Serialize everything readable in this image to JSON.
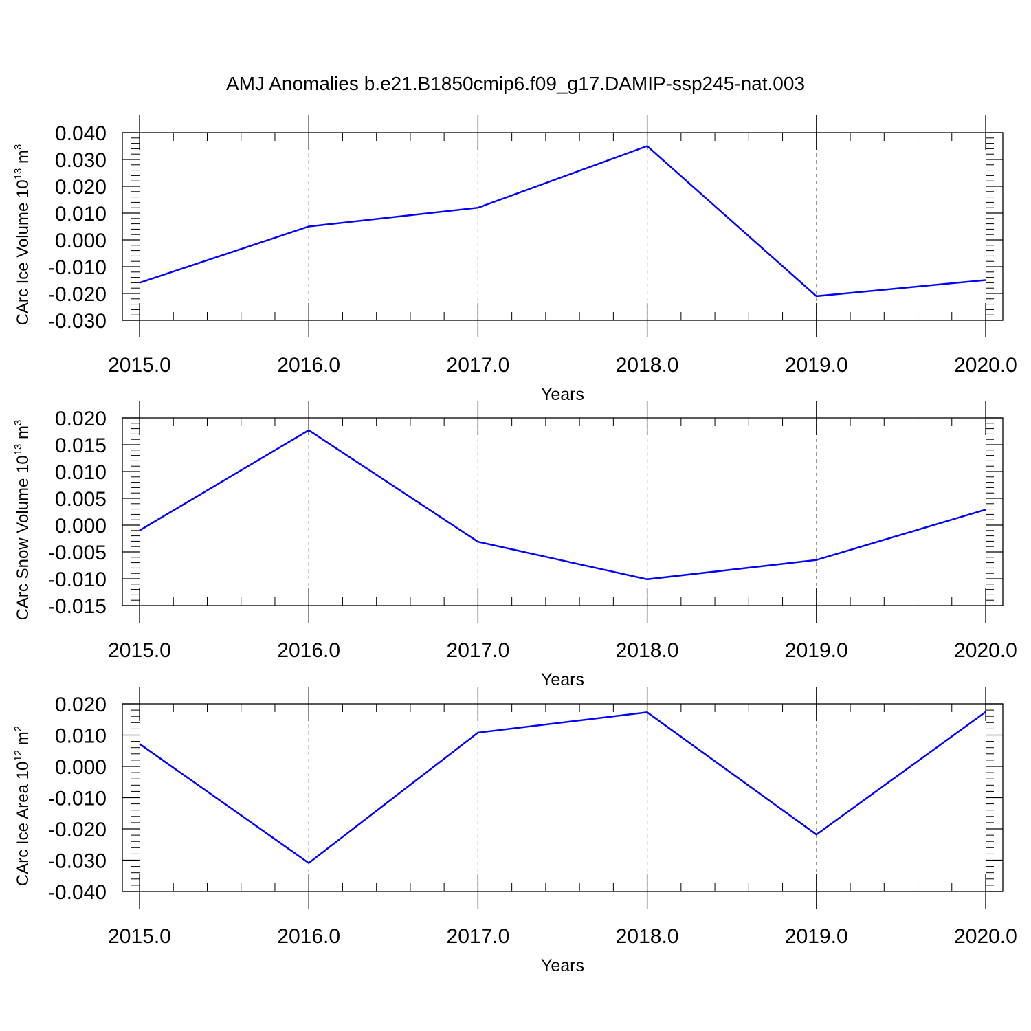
{
  "title": "AMJ Anomalies b.e21.B1850cmip6.f09_g17.DAMIP-ssp245-nat.003",
  "colors": {
    "line": "#0000ff",
    "axis": "#000000",
    "grid": "#808080"
  },
  "chart_data": [
    {
      "type": "line",
      "xlabel": "Years",
      "ylabel": {
        "main": "CArc Ice Volume 10",
        "exponent": "13",
        "unit": "m",
        "unit_exponent": "3"
      },
      "x_ticks": [
        "2015.0",
        "2016.0",
        "2017.0",
        "2018.0",
        "2019.0",
        "2020.0"
      ],
      "y_ticks": [
        "0.040",
        "0.030",
        "0.020",
        "0.010",
        "0.000",
        "-0.010",
        "-0.020",
        "-0.030"
      ],
      "xlim": [
        2015,
        2020
      ],
      "ylim": [
        -0.03,
        0.04
      ],
      "grid": "x-dashed",
      "series": [
        {
          "x": [
            2015,
            2016,
            2017,
            2018,
            2019,
            2020
          ],
          "y": [
            -0.016,
            0.005,
            0.012,
            0.035,
            -0.021,
            -0.015
          ]
        }
      ]
    },
    {
      "type": "line",
      "xlabel": "Years",
      "ylabel": {
        "main": "CArc Snow Volume 10",
        "exponent": "13",
        "unit": "m",
        "unit_exponent": "3"
      },
      "x_ticks": [
        "2015.0",
        "2016.0",
        "2017.0",
        "2018.0",
        "2019.0",
        "2020.0"
      ],
      "y_ticks": [
        "0.020",
        "0.015",
        "0.010",
        "0.005",
        "0.000",
        "-0.005",
        "-0.010",
        "-0.015"
      ],
      "xlim": [
        2015,
        2020
      ],
      "ylim": [
        -0.015,
        0.02
      ],
      "grid": "x-dashed",
      "series": [
        {
          "x": [
            2015,
            2016,
            2017,
            2018,
            2019,
            2020
          ],
          "y": [
            -0.001,
            0.0177,
            -0.0031,
            -0.0101,
            -0.0065,
            0.0029
          ]
        }
      ]
    },
    {
      "type": "line",
      "xlabel": "Years",
      "ylabel": {
        "main": "CArc Ice Area 10",
        "exponent": "12",
        "unit": "m",
        "unit_exponent": "2"
      },
      "x_ticks": [
        "2015.0",
        "2016.0",
        "2017.0",
        "2018.0",
        "2019.0",
        "2020.0"
      ],
      "y_ticks": [
        "0.020",
        "0.010",
        "0.000",
        "-0.010",
        "-0.020",
        "-0.030",
        "-0.040"
      ],
      "xlim": [
        2015,
        2020
      ],
      "ylim": [
        -0.04,
        0.02
      ],
      "grid": "x-dashed",
      "series": [
        {
          "x": [
            2015,
            2016,
            2017,
            2018,
            2019,
            2020
          ],
          "y": [
            0.0072,
            -0.0309,
            0.0108,
            0.0173,
            -0.0218,
            0.0174
          ]
        }
      ]
    }
  ]
}
